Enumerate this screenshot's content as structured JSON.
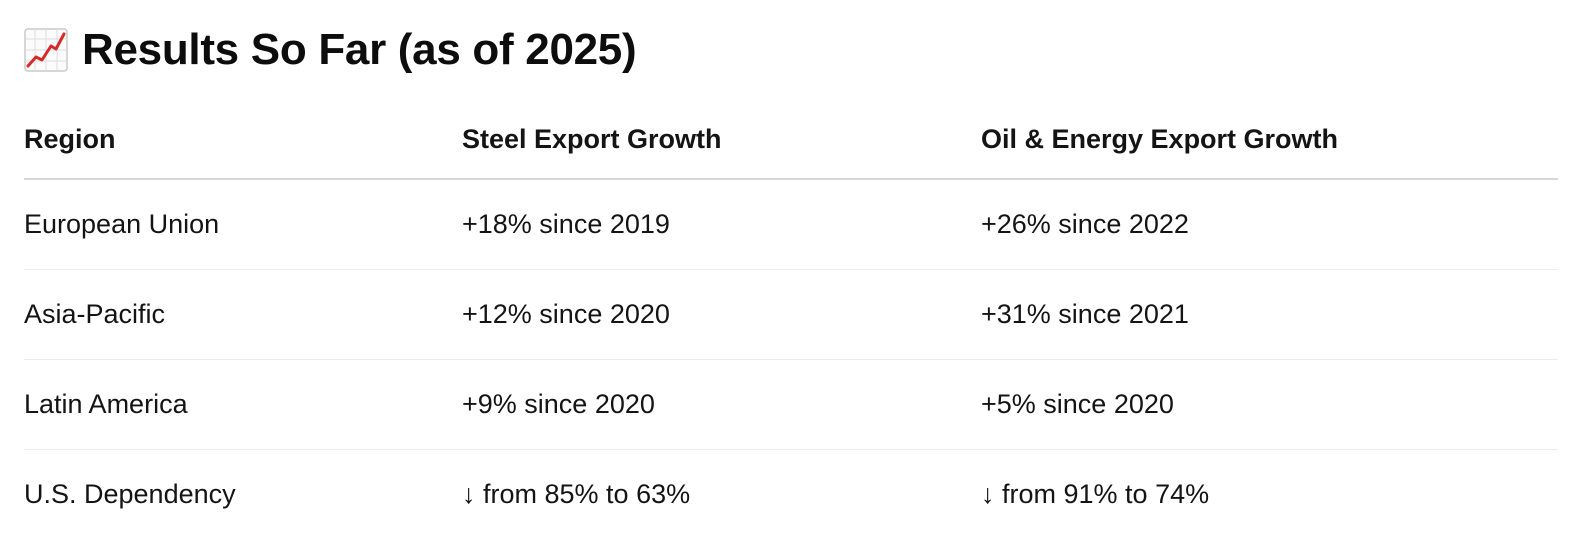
{
  "heading": {
    "icon": "chart-increasing-icon",
    "title": "Results So Far (as of 2025)"
  },
  "table": {
    "headers": [
      "Region",
      "Steel Export Growth",
      "Oil & Energy Export Growth"
    ],
    "rows": [
      [
        "European Union",
        "+18% since 2019",
        "+26% since 2022"
      ],
      [
        "Asia-Pacific",
        "+12% since 2020",
        "+31% since 2021"
      ],
      [
        "Latin America",
        "+9% since 2020",
        "+5% since 2020"
      ],
      [
        "U.S. Dependency",
        "↓ from 85% to 63%",
        "↓ from 91% to 74%"
      ]
    ]
  }
}
